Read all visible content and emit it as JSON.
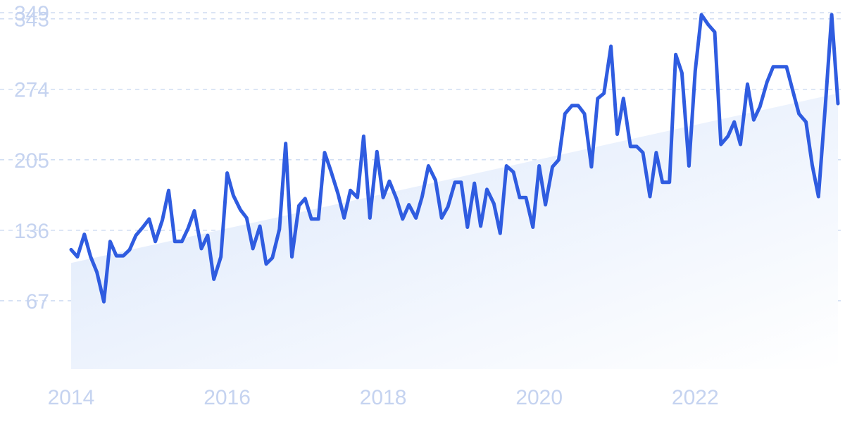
{
  "chart_data": {
    "type": "line",
    "title": "",
    "xlabel": "",
    "ylabel": "",
    "x_tick_labels": [
      "2014",
      "2016",
      "2018",
      "2020",
      "2022"
    ],
    "x_tick_values": [
      2014,
      2016,
      2018,
      2020,
      2022
    ],
    "y_tick_labels": [
      "67",
      "136",
      "205",
      "274",
      "343",
      "349"
    ],
    "y_tick_values": [
      67,
      136,
      205,
      274,
      343,
      349
    ],
    "xlim": [
      2014.0,
      2023.83
    ],
    "ylim": [
      0,
      349
    ],
    "grid": true,
    "line_color": "#2f5ce0",
    "trend_fill_color": "#dbe7fb",
    "trend_area": {
      "x": [
        2014.0,
        2023.83
      ],
      "y": [
        104,
        270
      ]
    },
    "series": [
      {
        "x": [
          2014.0,
          2014.08,
          2014.17,
          2014.25,
          2014.33,
          2014.42,
          2014.5,
          2014.58,
          2014.67,
          2014.75,
          2014.83,
          2014.92,
          2015.0,
          2015.08,
          2015.17,
          2015.25,
          2015.33,
          2015.42,
          2015.5,
          2015.58,
          2015.67,
          2015.75,
          2015.83,
          2015.92,
          2016.0,
          2016.08,
          2016.17,
          2016.25,
          2016.33,
          2016.42,
          2016.5,
          2016.58,
          2016.67,
          2016.75,
          2016.83,
          2016.92,
          2017.0,
          2017.08,
          2017.17,
          2017.25,
          2017.33,
          2017.42,
          2017.5,
          2017.58,
          2017.67,
          2017.75,
          2017.83,
          2017.92,
          2018.0,
          2018.08,
          2018.17,
          2018.25,
          2018.33,
          2018.42,
          2018.5,
          2018.58,
          2018.67,
          2018.75,
          2018.83,
          2018.92,
          2019.0,
          2019.08,
          2019.17,
          2019.25,
          2019.33,
          2019.42,
          2019.5,
          2019.58,
          2019.67,
          2019.75,
          2019.83,
          2019.92,
          2020.0,
          2020.08,
          2020.17,
          2020.25,
          2020.33,
          2020.42,
          2020.5,
          2020.58,
          2020.67,
          2020.75,
          2020.83,
          2020.92,
          2021.0,
          2021.08,
          2021.17,
          2021.25,
          2021.33,
          2021.42,
          2021.5,
          2021.58,
          2021.67,
          2021.75,
          2021.83,
          2021.92,
          2022.0,
          2022.08,
          2022.17,
          2022.25,
          2022.33,
          2022.42,
          2022.5,
          2022.58,
          2022.67,
          2022.75,
          2022.83,
          2022.92,
          2023.0,
          2023.08,
          2023.17,
          2023.25,
          2023.33,
          2023.42,
          2023.5,
          2023.58,
          2023.67,
          2023.75,
          2023.83
        ],
        "y": [
          117,
          110,
          132,
          110,
          95,
          66,
          125,
          111,
          111,
          117,
          131,
          139,
          147,
          125,
          146,
          175,
          125,
          125,
          138,
          155,
          118,
          131,
          88,
          110,
          192,
          170,
          156,
          148,
          118,
          140,
          103,
          109,
          137,
          221,
          110,
          160,
          167,
          147,
          147,
          212,
          194,
          172,
          148,
          175,
          168,
          228,
          148,
          213,
          168,
          184,
          167,
          147,
          161,
          148,
          169,
          199,
          185,
          148,
          159,
          183,
          183,
          139,
          182,
          140,
          176,
          162,
          133,
          199,
          193,
          168,
          168,
          139,
          199,
          161,
          198,
          205,
          250,
          258,
          258,
          250,
          198,
          265,
          270,
          316,
          230,
          265,
          218,
          218,
          212,
          169,
          212,
          183,
          183,
          308,
          290,
          199,
          292,
          347,
          337,
          330,
          220,
          228,
          242,
          220,
          279,
          244,
          257,
          281,
          296,
          296,
          296,
          273,
          250,
          242,
          200,
          169,
          260,
          347,
          260
        ]
      }
    ]
  }
}
